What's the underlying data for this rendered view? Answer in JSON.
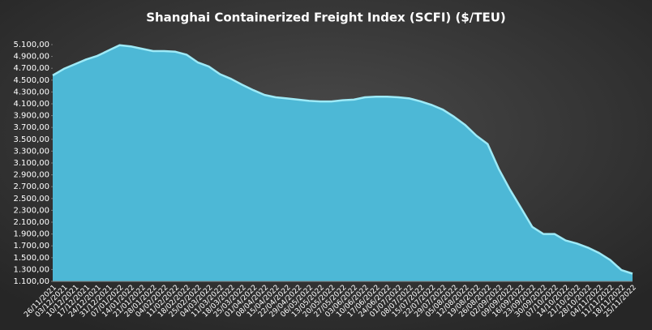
{
  "chart_data": {
    "type": "area",
    "title": "Shanghai  Containerized Freight Index  (SCFI) ($/TEU)",
    "categories": [
      "26/11/2021",
      "03/12/2021",
      "10/12/2021",
      "17/12/2021",
      "24/12/2021",
      "31/12/2021",
      "07/01/2022",
      "14/01/2022",
      "21/01/2022",
      "28/01/2022",
      "04/02/2022",
      "11/02/2022",
      "18/02/2022",
      "25/02/2022",
      "04/03/2022",
      "11/03/2022",
      "18/03/2022",
      "25/03/2022",
      "01/04/2022",
      "08/04/2022",
      "15/04/2022",
      "22/04/2022",
      "29/04/2022",
      "06/05/2022",
      "13/05/2022",
      "20/05/2022",
      "27/05/2022",
      "03/06/2022",
      "10/06/2022",
      "17/06/2022",
      "24/06/2022",
      "01/07/2022",
      "08/07/2022",
      "15/07/2022",
      "22/07/2022",
      "29/07/2022",
      "05/08/2022",
      "12/08/2022",
      "19/08/2022",
      "26/08/2022",
      "02/09/2022",
      "09/09/2022",
      "16/09/2022",
      "23/09/2022",
      "30/09/2022",
      "07/10/2022",
      "14/10/2022",
      "21/10/2022",
      "28/10/2022",
      "04/11/2022",
      "11/11/2022",
      "18/11/2022",
      "25/11/2022"
    ],
    "values": [
      4580,
      4690,
      4770,
      4850,
      4910,
      5000,
      5090,
      5070,
      5030,
      4990,
      4990,
      4980,
      4930,
      4800,
      4730,
      4600,
      4520,
      4420,
      4330,
      4250,
      4210,
      4190,
      4170,
      4150,
      4140,
      4140,
      4160,
      4170,
      4210,
      4220,
      4220,
      4210,
      4190,
      4140,
      4080,
      4000,
      3880,
      3740,
      3560,
      3420,
      3000,
      2650,
      2340,
      2020,
      1900,
      1900,
      1790,
      1740,
      1670,
      1580,
      1460,
      1290,
      1230
    ],
    "color": "#4db8d6",
    "line_color": "#9eeaf7",
    "ylim": [
      1100,
      5100
    ],
    "yticks": [
      {
        "value": 1100,
        "label": "1.100,00"
      },
      {
        "value": 1300,
        "label": "1.300,00"
      },
      {
        "value": 1500,
        "label": "1.500,00"
      },
      {
        "value": 1700,
        "label": "1.700,00"
      },
      {
        "value": 1900,
        "label": "1.900,00"
      },
      {
        "value": 2100,
        "label": "2.100,00"
      },
      {
        "value": 2300,
        "label": "2.300,00"
      },
      {
        "value": 2500,
        "label": "2.500,00"
      },
      {
        "value": 2700,
        "label": "2.700,00"
      },
      {
        "value": 2900,
        "label": "2.900,00"
      },
      {
        "value": 3100,
        "label": "3.100,00"
      },
      {
        "value": 3300,
        "label": "3.300,00"
      },
      {
        "value": 3500,
        "label": "3.500,00"
      },
      {
        "value": 3700,
        "label": "3.700,00"
      },
      {
        "value": 3900,
        "label": "3.900,00"
      },
      {
        "value": 4100,
        "label": "4.100,00"
      },
      {
        "value": 4300,
        "label": "4.300,00"
      },
      {
        "value": 4500,
        "label": "4.500,00"
      },
      {
        "value": 4700,
        "label": "4.700,00"
      },
      {
        "value": 4900,
        "label": "4.900,00"
      },
      {
        "value": 5100,
        "label": "5.100,00"
      }
    ],
    "grid": false
  }
}
